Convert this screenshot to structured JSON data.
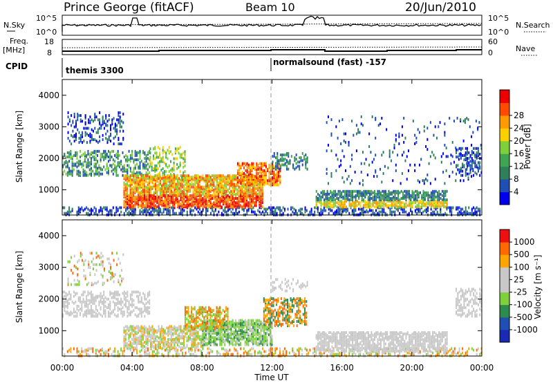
{
  "header": {
    "station": "Prince George (fitACF)",
    "beam": "Beam 10",
    "date": "20/Jun/2010"
  },
  "noise_panel": {
    "left_label": "N.Sky",
    "left_ticks": [
      "10^5",
      "10^0"
    ],
    "right_label": "N.Search",
    "right_ticks": [
      "10^5",
      "10^0"
    ]
  },
  "freq_panel": {
    "left_label_line1": "Freq.",
    "left_label_line2": "[MHz]",
    "left_ticks": [
      "18",
      "8"
    ],
    "right_label": "Nave",
    "right_ticks": [
      "60",
      "0"
    ]
  },
  "cpid_panel": {
    "label": "CPID",
    "programs": [
      {
        "name": "themis 3300",
        "start_hour": 0
      },
      {
        "name": "normalsound (fast) -157",
        "start_hour": 12
      }
    ]
  },
  "colors": {
    "power": [
      "#0000ee",
      "#1f4fb4",
      "#2e7f5a",
      "#40a552",
      "#7ecf3a",
      "#ffd000",
      "#ff9a00",
      "#ff4a00",
      "#ee0000"
    ],
    "velocity": [
      "#ee1010",
      "#ff6a00",
      "#ffa500",
      "#c8c8c8",
      "#c8c8c8",
      "#7ed13a",
      "#2e8b50",
      "#1f4fb4",
      "#1a2ab3"
    ]
  },
  "chart_data": [
    {
      "type": "heatmap",
      "title": "Power",
      "xlabel": "Time UT",
      "ylabel": "Slant Range [km]",
      "x_ticks": [
        "00:00",
        "04:00",
        "08:00",
        "12:00",
        "16:00",
        "20:00",
        "00:00"
      ],
      "y_ticks": [
        1000,
        2000,
        3000,
        4000
      ],
      "ylim": [
        200,
        4500
      ],
      "colorbar_label": "Power [dB]",
      "colorbar_ticks": [
        4,
        8,
        12,
        16,
        20,
        24,
        28
      ],
      "colorbar_range": [
        0,
        32
      ]
    },
    {
      "type": "heatmap",
      "title": "Velocity",
      "xlabel": "Time UT",
      "ylabel": "Slant Range [km]",
      "x_ticks": [
        "00:00",
        "04:00",
        "08:00",
        "12:00",
        "16:00",
        "20:00",
        "00:00"
      ],
      "y_ticks": [
        1000,
        2000,
        3000,
        4000
      ],
      "ylim": [
        200,
        4500
      ],
      "colorbar_label": "Velocity [m s⁻¹]",
      "colorbar_ticks": [
        "1000",
        "500",
        "100",
        "25",
        "-25",
        "-100",
        "-500",
        "-1000"
      ]
    }
  ],
  "axis": {
    "time_label": "Time UT"
  }
}
